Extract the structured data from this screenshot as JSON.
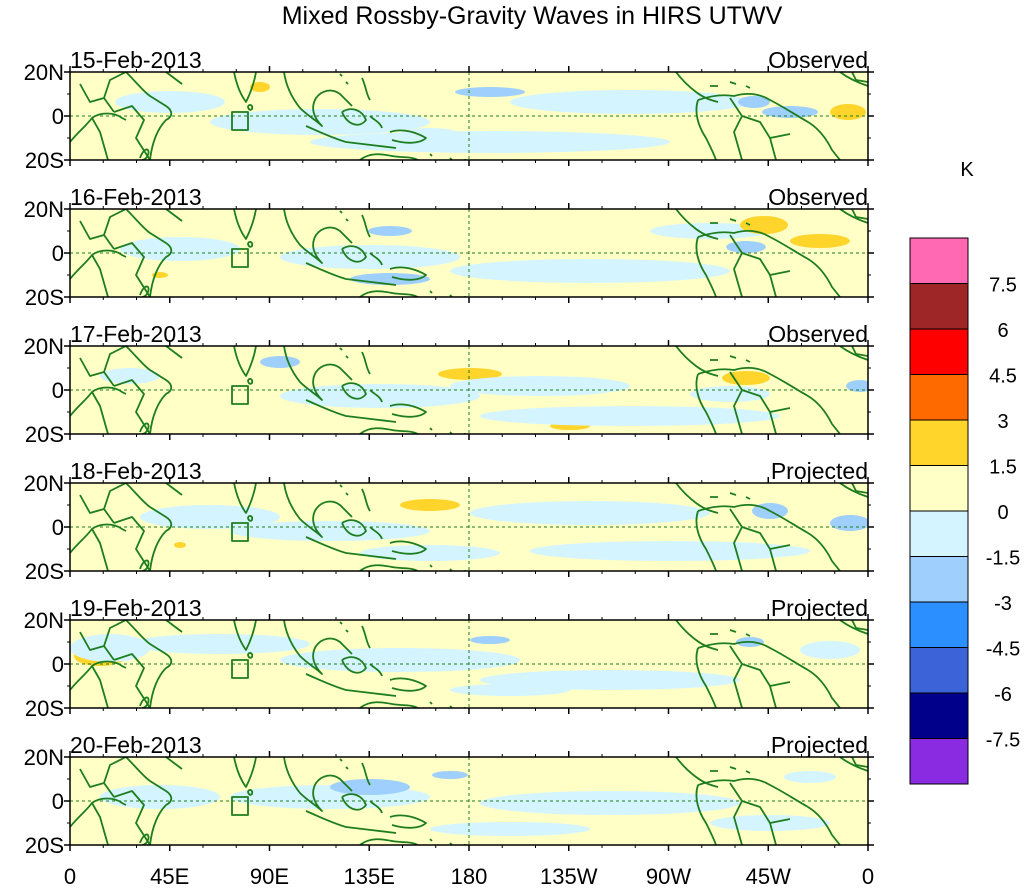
{
  "title": "Mixed Rossby-Gravity Waves in HIRS UTWV",
  "panels": [
    {
      "date": "15-Feb-2013",
      "status": "Observed"
    },
    {
      "date": "16-Feb-2013",
      "status": "Observed"
    },
    {
      "date": "17-Feb-2013",
      "status": "Observed"
    },
    {
      "date": "18-Feb-2013",
      "status": "Projected"
    },
    {
      "date": "19-Feb-2013",
      "status": "Projected"
    },
    {
      "date": "20-Feb-2013",
      "status": "Projected"
    }
  ],
  "lat_labels": [
    "20N",
    "0",
    "20S"
  ],
  "lon_labels": [
    "0",
    "45E",
    "90E",
    "135E",
    "180",
    "135W",
    "90W",
    "45W",
    "0"
  ],
  "colorbar": {
    "unit": "K",
    "labels": [
      "7.5",
      "6",
      "4.5",
      "3",
      "1.5",
      "0",
      "-1.5",
      "-3",
      "-4.5",
      "-6",
      "-7.5"
    ],
    "colors": [
      "#ff69b4",
      "#9e2626",
      "#ff0000",
      "#ff6a00",
      "#ffd42b",
      "#ffffc6",
      "#d4f5ff",
      "#9ecffd",
      "#2b8fff",
      "#3c64d8",
      "#00008b",
      "#8a2be2"
    ]
  },
  "colors": {
    "land_outline": "#1e7d1e",
    "zero_line": "#1e7d1e"
  }
}
